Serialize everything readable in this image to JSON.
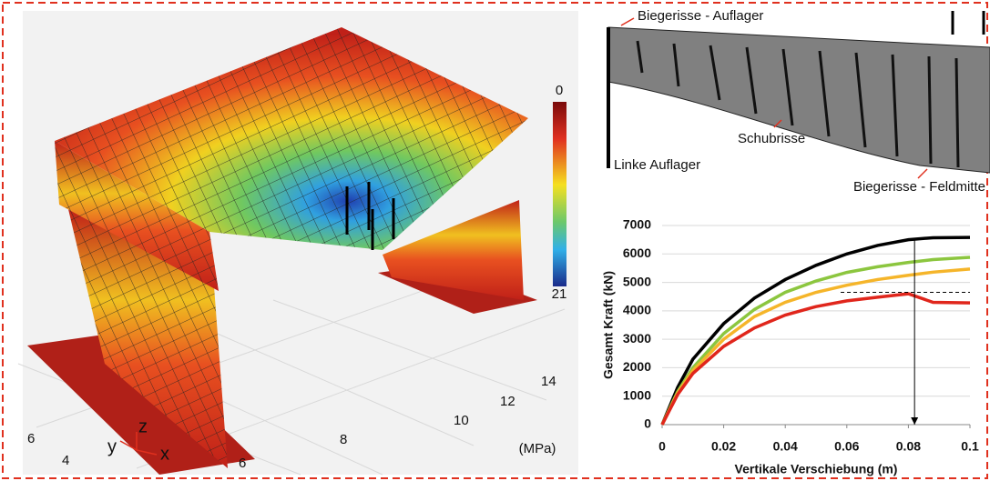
{
  "fe_model": {
    "colorbar_top": "0",
    "colorbar_bottom": "21",
    "unit": "(MPa)",
    "floor_ticks": [
      "6",
      "4",
      "6",
      "8",
      "10",
      "12",
      "14"
    ],
    "axis_y": "y",
    "axis_z": "z",
    "axis_x": "x"
  },
  "crack_diagram": {
    "label_top": "Biegerisse - Auflager",
    "label_shear": "Schubrisse",
    "label_support": "Linke Auflager",
    "label_midspan": "Biegerisse - Feldmitte"
  },
  "chart_data": {
    "type": "line",
    "xlabel": "Vertikale Verschiebung (m)",
    "ylabel": "Gesamt Kraft (kN)",
    "x": [
      0,
      0.005,
      0.01,
      0.02,
      0.03,
      0.04,
      0.05,
      0.06,
      0.07,
      0.08,
      0.088,
      0.1
    ],
    "series": [
      {
        "color": "#000000",
        "values": [
          0,
          1300,
          2300,
          3550,
          4450,
          5100,
          5600,
          6000,
          6300,
          6500,
          6570,
          6580
        ]
      },
      {
        "color": "#8cc63f",
        "values": [
          0,
          1150,
          2000,
          3200,
          4050,
          4650,
          5050,
          5350,
          5550,
          5700,
          5800,
          5880
        ]
      },
      {
        "color": "#f5b52a",
        "values": [
          0,
          1100,
          1900,
          3000,
          3800,
          4300,
          4650,
          4900,
          5100,
          5250,
          5360,
          5470
        ]
      },
      {
        "color": "#e0261c",
        "values": [
          0,
          1050,
          1800,
          2750,
          3400,
          3850,
          4150,
          4350,
          4480,
          4600,
          4300,
          4280
        ]
      }
    ],
    "reference_line": {
      "y": 4650,
      "x": [
        0.058,
        0.1
      ]
    },
    "arrow": {
      "x": 0.082,
      "y": [
        6550,
        0
      ]
    },
    "xlim": [
      0,
      0.1
    ],
    "xticks": [
      0,
      0.02,
      0.04,
      0.06,
      0.08,
      0.1
    ],
    "ylim": [
      0,
      7000
    ],
    "yticks": [
      0,
      1000,
      2000,
      3000,
      4000,
      5000,
      6000,
      7000
    ],
    "grid": true
  }
}
